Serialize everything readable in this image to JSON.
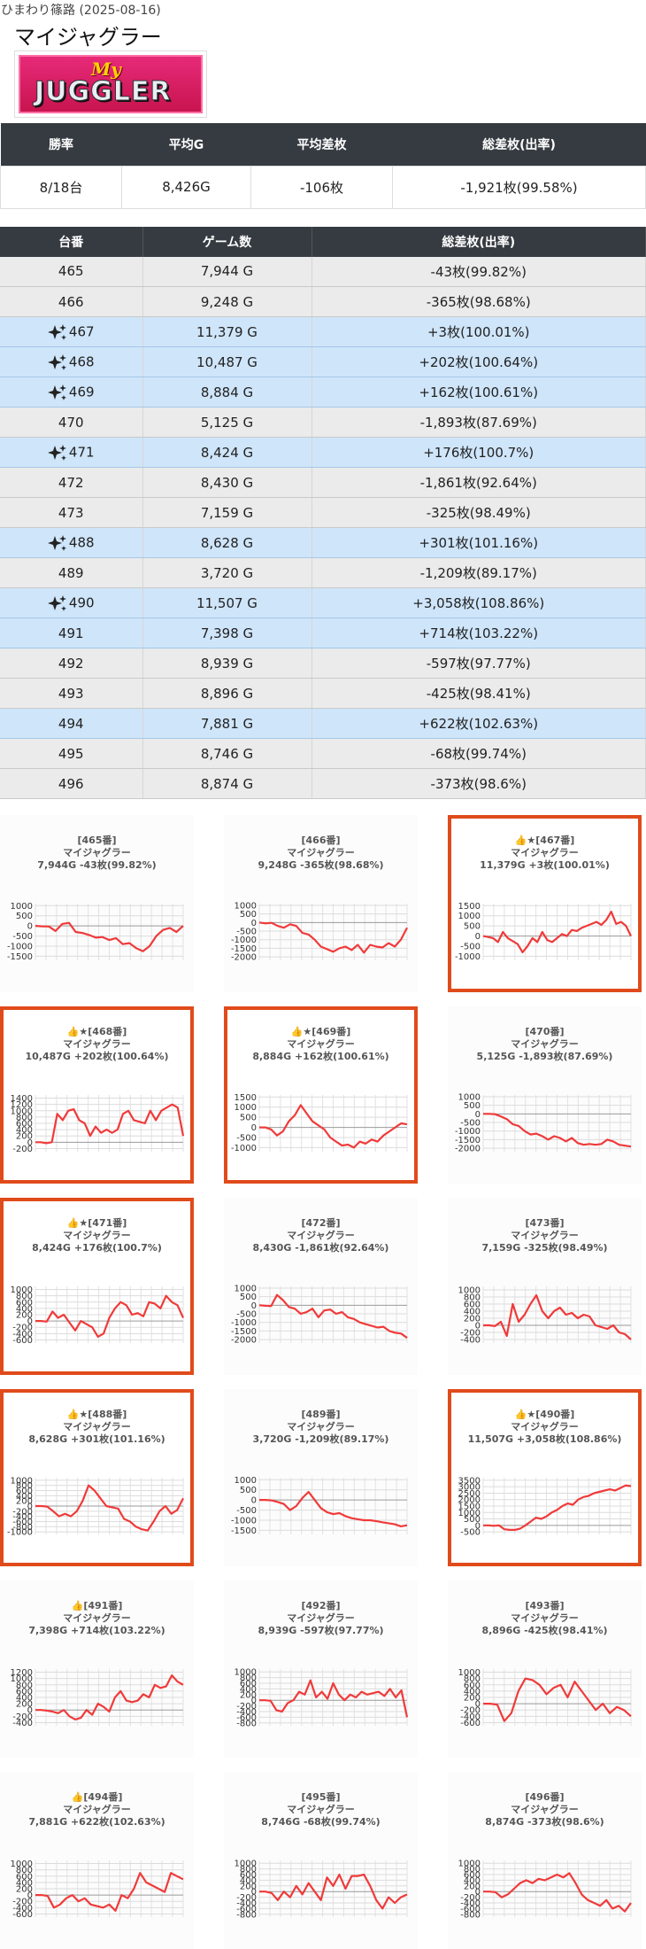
{
  "store_line": "ひまわり篠路 (2025-08-16)",
  "page_title": "マイジャグラー",
  "logo": {
    "top": "My",
    "bottom": "JUGGLER"
  },
  "summary": {
    "headers": [
      "勝率",
      "平均G",
      "平均差枚",
      "総差枚(出率)"
    ],
    "values": [
      "8/18台",
      "8,426G",
      "-106枚",
      "-1,921枚(99.58%)"
    ]
  },
  "machine_table": {
    "headers": [
      "台番",
      "ゲーム数",
      "総差枚(出率)"
    ],
    "rows": [
      {
        "num": "465",
        "games": "7,944 G",
        "diff": "-43枚(99.82%)",
        "hl": false
      },
      {
        "num": "466",
        "games": "9,248 G",
        "diff": "-365枚(98.68%)",
        "hl": false
      },
      {
        "num": "467",
        "games": "11,379 G",
        "diff": "+3枚(100.01%)",
        "hl": true
      },
      {
        "num": "468",
        "games": "10,487 G",
        "diff": "+202枚(100.64%)",
        "hl": true
      },
      {
        "num": "469",
        "games": "8,884 G",
        "diff": "+162枚(100.61%)",
        "hl": true
      },
      {
        "num": "470",
        "games": "5,125 G",
        "diff": "-1,893枚(87.69%)",
        "hl": false
      },
      {
        "num": "471",
        "games": "8,424 G",
        "diff": "+176枚(100.7%)",
        "hl": true
      },
      {
        "num": "472",
        "games": "8,430 G",
        "diff": "-1,861枚(92.64%)",
        "hl": false
      },
      {
        "num": "473",
        "games": "7,159 G",
        "diff": "-325枚(98.49%)",
        "hl": false
      },
      {
        "num": "488",
        "games": "8,628 G",
        "diff": "+301枚(101.16%)",
        "hl": true
      },
      {
        "num": "489",
        "games": "3,720 G",
        "diff": "-1,209枚(89.17%)",
        "hl": false
      },
      {
        "num": "490",
        "games": "11,507 G",
        "diff": "+3,058枚(108.86%)",
        "hl": true
      },
      {
        "num": "491",
        "games": "7,398 G",
        "diff": "+714枚(103.22%)",
        "hl": "light"
      },
      {
        "num": "492",
        "games": "8,939 G",
        "diff": "-597枚(97.77%)",
        "hl": false
      },
      {
        "num": "493",
        "games": "8,896 G",
        "diff": "-425枚(98.41%)",
        "hl": false
      },
      {
        "num": "494",
        "games": "7,881 G",
        "diff": "+622枚(102.63%)",
        "hl": "light"
      },
      {
        "num": "495",
        "games": "8,746 G",
        "diff": "-68枚(99.74%)",
        "hl": false
      },
      {
        "num": "496",
        "games": "8,874 G",
        "diff": "-373枚(98.6%)",
        "hl": false
      }
    ]
  },
  "graph_cards": [
    {
      "title": "[465番]",
      "prefix": "",
      "sub": "マイジャグラー",
      "stat": "7,944G -43枚(99.82%)",
      "boxed": false,
      "ticks": [
        "1000",
        "500",
        "0",
        "-500",
        "-1000",
        "-1500"
      ],
      "ymin": -1700,
      "ymax": 1100,
      "points": [
        0,
        -20,
        -30,
        -250,
        100,
        150,
        -300,
        -350,
        -450,
        -580,
        -550,
        -700,
        -600,
        -900,
        -850,
        -1100,
        -1250,
        -1000,
        -500,
        -200,
        -100,
        -300,
        0
      ]
    },
    {
      "title": "[466番]",
      "prefix": "",
      "sub": "マイジャグラー",
      "stat": "9,248G -365枚(98.68%)",
      "boxed": false,
      "ticks": [
        "1000",
        "500",
        "0",
        "-500",
        "-1000",
        "-1500",
        "-2000"
      ],
      "ymin": -2200,
      "ymax": 1100,
      "points": [
        0,
        -50,
        -20,
        -200,
        -300,
        -100,
        -200,
        -600,
        -700,
        -1000,
        -1400,
        -1550,
        -1700,
        -1500,
        -1400,
        -1600,
        -1300,
        -1750,
        -1300,
        -1400,
        -1450,
        -1200,
        -1400,
        -1000,
        -300
      ]
    },
    {
      "title": "[467番]",
      "prefix": "👍★",
      "sub": "マイジャグラー",
      "stat": "11,379G +3枚(100.01%)",
      "boxed": true,
      "ticks": [
        "1500",
        "1000",
        "500",
        "0",
        "-500",
        "-1000"
      ],
      "ymin": -1200,
      "ymax": 1600,
      "points": [
        0,
        -50,
        -100,
        -300,
        200,
        -100,
        -250,
        -400,
        -800,
        -500,
        -100,
        -300,
        200,
        -200,
        -300,
        -100,
        100,
        0,
        300,
        250,
        400,
        500,
        600,
        700,
        550,
        800,
        1200,
        600,
        700,
        500,
        0
      ]
    },
    {
      "title": "[468番]",
      "prefix": "👍★",
      "sub": "マイジャグラー",
      "stat": "10,487G +202枚(100.64%)",
      "boxed": true,
      "ticks": [
        "1400",
        "1200",
        "1000",
        "800",
        "600",
        "400",
        "200",
        "0",
        "-200"
      ],
      "ymin": -300,
      "ymax": 1500,
      "points": [
        0,
        0,
        -30,
        0,
        900,
        700,
        1000,
        1050,
        700,
        600,
        200,
        500,
        300,
        400,
        300,
        400,
        900,
        1000,
        700,
        650,
        600,
        1000,
        700,
        1000,
        1100,
        1200,
        1100,
        200
      ]
    },
    {
      "title": "[469番]",
      "prefix": "👍★",
      "sub": "マイジャグラー",
      "stat": "8,884G +162枚(100.61%)",
      "boxed": true,
      "ticks": [
        "1500",
        "1000",
        "500",
        "0",
        "-500",
        "-1000"
      ],
      "ymin": -1200,
      "ymax": 1600,
      "points": [
        0,
        0,
        -100,
        -400,
        -200,
        300,
        600,
        1100,
        700,
        300,
        100,
        -100,
        -500,
        -700,
        -900,
        -850,
        -1000,
        -700,
        -800,
        -600,
        -700,
        -400,
        -200,
        0,
        200,
        150
      ]
    },
    {
      "title": "[470番]",
      "prefix": "",
      "sub": "マイジャグラー",
      "stat": "5,125G -1,893枚(87.69%)",
      "boxed": false,
      "ticks": [
        "1000",
        "500",
        "0",
        "-500",
        "-1000",
        "-1500",
        "-2000"
      ],
      "ymin": -2200,
      "ymax": 1100,
      "points": [
        0,
        0,
        -20,
        -150,
        -300,
        -600,
        -700,
        -1000,
        -1200,
        -1150,
        -1300,
        -1500,
        -1300,
        -1400,
        -1600,
        -1400,
        -1700,
        -1800,
        -1750,
        -1800,
        -1750,
        -1500,
        -1600,
        -1800,
        -1850,
        -1900
      ]
    },
    {
      "title": "[471番]",
      "prefix": "👍★",
      "sub": "マイジャグラー",
      "stat": "8,424G +176枚(100.7%)",
      "boxed": true,
      "ticks": [
        "1000",
        "800",
        "600",
        "400",
        "200",
        "0",
        "-200",
        "-400",
        "-600"
      ],
      "ymin": -700,
      "ymax": 1100,
      "points": [
        0,
        0,
        -20,
        300,
        100,
        200,
        -50,
        -300,
        0,
        -100,
        -200,
        -500,
        -400,
        100,
        400,
        600,
        500,
        200,
        250,
        150,
        600,
        550,
        400,
        800,
        600,
        500,
        100
      ]
    },
    {
      "title": "[472番]",
      "prefix": "",
      "sub": "マイジャグラー",
      "stat": "8,430G -1,861枚(92.64%)",
      "boxed": false,
      "ticks": [
        "1000",
        "500",
        "0",
        "-500",
        "-1000",
        "-1500",
        "-2000"
      ],
      "ymin": -2200,
      "ymax": 1100,
      "points": [
        0,
        -30,
        -50,
        600,
        300,
        -100,
        -200,
        -500,
        -400,
        -200,
        -700,
        -300,
        -250,
        -500,
        -400,
        -700,
        -800,
        -1000,
        -1100,
        -1200,
        -1300,
        -1250,
        -1500,
        -1600,
        -1650,
        -1900
      ]
    },
    {
      "title": "[473番]",
      "prefix": "",
      "sub": "マイジャグラー",
      "stat": "7,159G -325枚(98.49%)",
      "boxed": false,
      "ticks": [
        "1000",
        "800",
        "600",
        "400",
        "200",
        "0",
        "-200",
        "-400"
      ],
      "ymin": -500,
      "ymax": 1100,
      "points": [
        0,
        0,
        -20,
        100,
        -300,
        600,
        100,
        300,
        600,
        850,
        400,
        200,
        400,
        500,
        300,
        350,
        200,
        300,
        250,
        0,
        -50,
        -100,
        0,
        -200,
        -250,
        -400
      ]
    },
    {
      "title": "[488番]",
      "prefix": "👍★",
      "sub": "マイジャグラー",
      "stat": "8,628G +301枚(101.16%)",
      "boxed": true,
      "ticks": [
        "1000",
        "800",
        "600",
        "400",
        "200",
        "0",
        "-200",
        "-400",
        "-600",
        "-800",
        "-1000"
      ],
      "ymin": -1100,
      "ymax": 1100,
      "points": [
        0,
        0,
        -20,
        -200,
        -400,
        -300,
        -400,
        -200,
        200,
        800,
        600,
        300,
        0,
        -50,
        -100,
        -500,
        -600,
        -800,
        -900,
        -950,
        -600,
        -200,
        0,
        -300,
        -150,
        300
      ]
    },
    {
      "title": "[489番]",
      "prefix": "",
      "sub": "マイジャグラー",
      "stat": "3,720G -1,209枚(89.17%)",
      "boxed": false,
      "ticks": [
        "1000",
        "500",
        "0",
        "-500",
        "-1000",
        "-1500"
      ],
      "ymin": -1700,
      "ymax": 1100,
      "points": [
        0,
        0,
        -20,
        -100,
        -200,
        -500,
        -300,
        100,
        400,
        0,
        -400,
        -600,
        -700,
        -650,
        -800,
        -900,
        -950,
        -1000,
        -1000,
        -1050,
        -1100,
        -1150,
        -1200,
        -1300,
        -1250
      ]
    },
    {
      "title": "[490番]",
      "prefix": "👍★",
      "sub": "マイジャグラー",
      "stat": "11,507G +3,058枚(108.86%)",
      "boxed": true,
      "ticks": [
        "3500",
        "3000",
        "2500",
        "2000",
        "1500",
        "1000",
        "500",
        "0",
        "-500"
      ],
      "ymin": -700,
      "ymax": 3700,
      "points": [
        0,
        0,
        -30,
        0,
        -300,
        -350,
        -350,
        -250,
        0,
        300,
        600,
        500,
        700,
        1000,
        1200,
        1500,
        1700,
        1600,
        2000,
        2200,
        2300,
        2500,
        2600,
        2700,
        2800,
        2700,
        2900,
        3100,
        3050
      ]
    },
    {
      "title": "[491番]",
      "prefix": "👍",
      "sub": "マイジャグラー",
      "stat": "7,398G +714枚(103.22%)",
      "boxed": false,
      "ticks": [
        "1200",
        "1000",
        "800",
        "600",
        "400",
        "200",
        "0",
        "-200",
        "-400"
      ],
      "ymin": -500,
      "ymax": 1300,
      "points": [
        0,
        0,
        -20,
        -50,
        -100,
        0,
        -200,
        -300,
        -250,
        0,
        -150,
        200,
        100,
        -50,
        400,
        600,
        300,
        250,
        300,
        500,
        400,
        800,
        700,
        750,
        1100,
        900,
        800
      ]
    },
    {
      "title": "[492番]",
      "prefix": "",
      "sub": "マイジャグラー",
      "stat": "8,939G -597枚(97.77%)",
      "boxed": false,
      "ticks": [
        "1000",
        "800",
        "600",
        "400",
        "200",
        "0",
        "-200",
        "-400",
        "-600",
        "-800"
      ],
      "ymin": -900,
      "ymax": 1100,
      "points": [
        0,
        0,
        -20,
        -350,
        -400,
        -100,
        0,
        300,
        200,
        700,
        100,
        300,
        50,
        600,
        200,
        0,
        200,
        100,
        300,
        200,
        250,
        300,
        150,
        400,
        100,
        350,
        -600
      ]
    },
    {
      "title": "[493番]",
      "prefix": "",
      "sub": "マイジャグラー",
      "stat": "8,896G -425枚(98.41%)",
      "boxed": false,
      "ticks": [
        "1000",
        "800",
        "600",
        "400",
        "200",
        "0",
        "-200",
        "-400",
        "-600"
      ],
      "ymin": -700,
      "ymax": 1100,
      "points": [
        0,
        0,
        -30,
        -550,
        -300,
        400,
        800,
        750,
        600,
        300,
        500,
        600,
        200,
        700,
        400,
        100,
        -200,
        0,
        -300,
        -100,
        -200,
        -400
      ]
    },
    {
      "title": "[494番]",
      "prefix": "👍",
      "sub": "マイジャグラー",
      "stat": "7,881G +622枚(102.63%)",
      "boxed": false,
      "ticks": [
        "1000",
        "800",
        "600",
        "400",
        "200",
        "0",
        "-200",
        "-400",
        "-600"
      ],
      "ymin": -700,
      "ymax": 1100,
      "points": [
        0,
        0,
        -30,
        -400,
        -300,
        -100,
        0,
        -200,
        -100,
        -300,
        -350,
        -400,
        -300,
        -500,
        0,
        -100,
        200,
        700,
        400,
        300,
        200,
        100,
        700,
        600,
        500
      ]
    },
    {
      "title": "[495番]",
      "prefix": "",
      "sub": "マイジャグラー",
      "stat": "8,746G -68枚(99.74%)",
      "boxed": false,
      "ticks": [
        "1000",
        "800",
        "600",
        "400",
        "200",
        "0",
        "-200",
        "-400",
        "-600",
        "-800"
      ],
      "ymin": -900,
      "ymax": 1100,
      "points": [
        0,
        0,
        -50,
        -300,
        0,
        -200,
        200,
        -100,
        300,
        0,
        -300,
        500,
        200,
        600,
        100,
        550,
        550,
        600,
        200,
        -300,
        -600,
        -200,
        -400,
        -200,
        -100
      ]
    },
    {
      "title": "[496番]",
      "prefix": "",
      "sub": "マイジャグラー",
      "stat": "8,874G -373枚(98.6%)",
      "boxed": false,
      "ticks": [
        "1000",
        "800",
        "600",
        "400",
        "200",
        "0",
        "-200",
        "-400",
        "-600",
        "-800"
      ],
      "ymin": -900,
      "ymax": 1100,
      "points": [
        0,
        0,
        -20,
        -200,
        -100,
        100,
        300,
        400,
        300,
        450,
        400,
        500,
        600,
        500,
        650,
        300,
        -100,
        -300,
        -400,
        -500,
        -300,
        -600,
        -500,
        -700,
        -400
      ]
    }
  ],
  "colors": {
    "line": "#f03a3a",
    "highlight_row": "#cfe5fa",
    "box": "#e04b1b",
    "header_bg": "#353b41"
  }
}
